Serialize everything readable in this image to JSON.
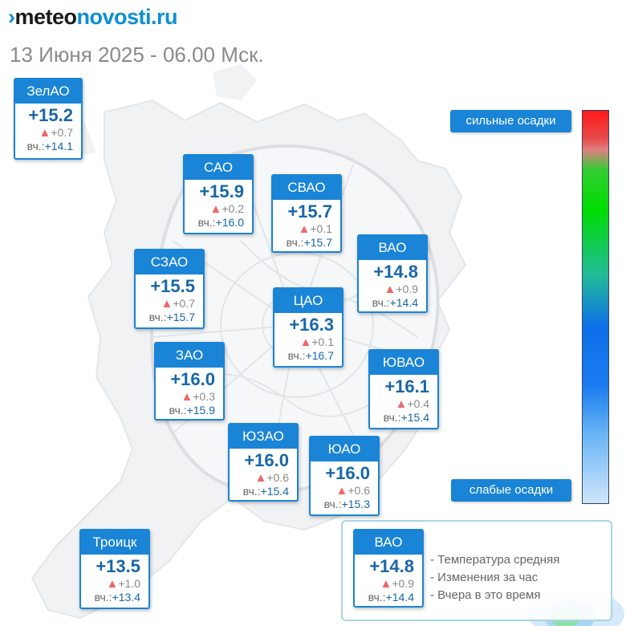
{
  "header": {
    "logo_mark": "›",
    "logo_part1": "meteo",
    "logo_part2": "novosti",
    "logo_part3": ".ru",
    "date": "13 Июня 2025 - 06.00 Мск."
  },
  "yesterday_prefix": "вч.:",
  "change_marker": "▲",
  "districts": [
    {
      "name": "ЗелАО",
      "temp": "+15.2",
      "change": "+0.7",
      "yesterday": "+14.1"
    },
    {
      "name": "САО",
      "temp": "+15.9",
      "change": "+0.2",
      "yesterday": "+16.0"
    },
    {
      "name": "СВАО",
      "temp": "+15.7",
      "change": "+0.1",
      "yesterday": "+15.7"
    },
    {
      "name": "ВАО",
      "temp": "+14.8",
      "change": "+0.9",
      "yesterday": "+14.4"
    },
    {
      "name": "СЗАО",
      "temp": "+15.5",
      "change": "+0.7",
      "yesterday": "+15.7"
    },
    {
      "name": "ЦАО",
      "temp": "+16.3",
      "change": "+0.1",
      "yesterday": "+16.7"
    },
    {
      "name": "ЗАО",
      "temp": "+16.0",
      "change": "+0.3",
      "yesterday": "+15.9"
    },
    {
      "name": "ЮВАО",
      "temp": "+16.1",
      "change": "+0.4",
      "yesterday": "+15.4"
    },
    {
      "name": "ЮЗАО",
      "temp": "+16.0",
      "change": "+0.6",
      "yesterday": "+15.4"
    },
    {
      "name": "ЮАО",
      "temp": "+16.0",
      "change": "+0.6",
      "yesterday": "+15.3"
    },
    {
      "name": "Троицк",
      "temp": "+13.5",
      "change": "+1.0",
      "yesterday": "+13.4"
    }
  ],
  "precip_scale": {
    "top_label": "сильные осадки",
    "bottom_label": "слабые осадки",
    "top_color": "#ff1a1a",
    "bottom_color": "#cfe6fb"
  },
  "legend": {
    "sample": {
      "name": "ВАО",
      "temp": "+14.8",
      "change": "+0.9",
      "yesterday": "+14.4"
    },
    "line1": "- Температура средняя",
    "line2": "- Изменения за час",
    "line3": "- Вчера в это время"
  },
  "colors": {
    "accent": "#1a84d6",
    "temp_text": "#1767a8",
    "rise_marker": "#f06666"
  }
}
